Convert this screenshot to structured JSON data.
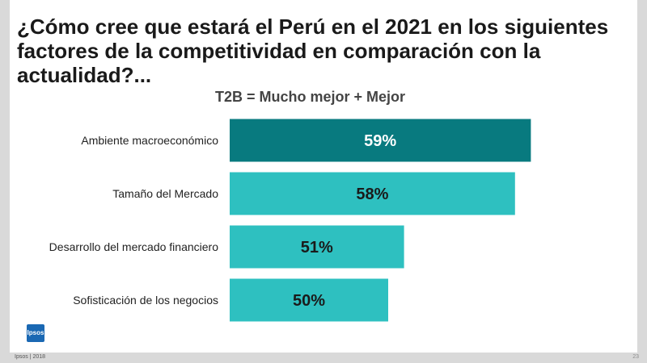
{
  "slide": {
    "title": "¿Cómo cree que estará el Perú en el 2021 en los siguientes factores de la competitividad en comparación con la actualidad?...",
    "subtitle": "T2B = Mucho mejor + Mejor",
    "logo_text": "Ipsos",
    "footer_left": "Ipsos | 2018",
    "page_number": "23"
  },
  "colors": {
    "highlight_bar": "#087a7f",
    "bar": "#2ec0c0",
    "highlight_label": "#ffffff",
    "label": "#1a1a1a",
    "logo": "#1a68b3"
  },
  "chart_data": {
    "type": "bar",
    "orientation": "horizontal",
    "title": "T2B = Mucho mejor + Mejor",
    "categories": [
      "Ambiente macroeconómico",
      "Tamaño del Mercado",
      "Desarrollo del mercado financiero",
      "Sofisticación de los negocios"
    ],
    "values": [
      59,
      58,
      51,
      50
    ],
    "value_labels": [
      "59%",
      "58%",
      "51%",
      "50%"
    ],
    "highlight_index": 0,
    "xlim": [
      40,
      60
    ],
    "grid": false,
    "legend": "none"
  }
}
